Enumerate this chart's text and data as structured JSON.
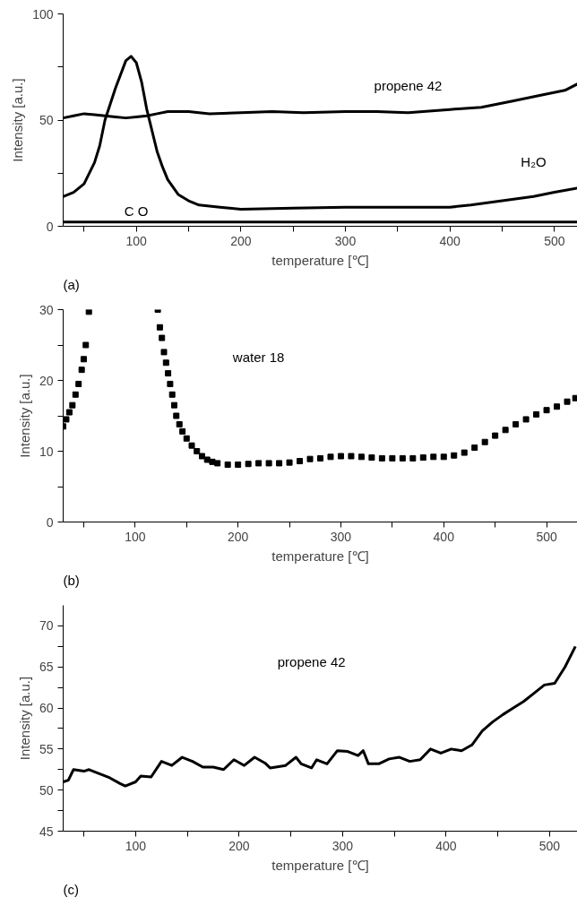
{
  "chart_data": [
    {
      "type": "line",
      "xlabel": "temperature [℃]",
      "ylabel": "Intensity [a.u.]",
      "xlim": [
        30,
        522
      ],
      "ylim": [
        0,
        100
      ],
      "xticks": [
        {
          "value": 50,
          "label": null
        },
        100,
        {
          "value": 150,
          "label": null
        },
        200,
        {
          "value": 250,
          "label": null
        },
        300,
        {
          "value": 350,
          "label": null
        },
        400,
        {
          "value": 450,
          "label": null
        },
        500
      ],
      "yticks": [
        0,
        {
          "value": 25,
          "label": null
        },
        50,
        {
          "value": 75,
          "label": null
        },
        100
      ],
      "grid": false,
      "legend": false,
      "line_style": "solid",
      "series": [
        {
          "name": "propene 42",
          "color": "#000000",
          "x": [
            30,
            40,
            50,
            60,
            70,
            80,
            90,
            100,
            110,
            120,
            130,
            150,
            170,
            200,
            230,
            260,
            300,
            330,
            360,
            400,
            430,
            460,
            490,
            510,
            522
          ],
          "values": [
            51,
            52,
            53,
            52.5,
            52,
            51.5,
            51,
            51.5,
            52,
            53,
            54,
            54,
            53,
            53.5,
            54,
            53.5,
            54,
            54,
            53.5,
            55,
            56,
            59,
            62,
            64,
            67
          ]
        },
        {
          "name": "H₂O",
          "color": "#000000",
          "x": [
            30,
            40,
            50,
            60,
            65,
            70,
            80,
            90,
            95,
            100,
            105,
            110,
            115,
            120,
            125,
            130,
            140,
            150,
            160,
            180,
            200,
            250,
            300,
            350,
            400,
            420,
            450,
            480,
            500,
            522
          ],
          "values": [
            14,
            16,
            20,
            30,
            38,
            50,
            65,
            78,
            80,
            77,
            68,
            55,
            45,
            35,
            28,
            22,
            15,
            12,
            10,
            9,
            8,
            8.5,
            9,
            9,
            9,
            10,
            12,
            14,
            16,
            18
          ]
        },
        {
          "name": "C O",
          "color": "#000000",
          "x": [
            30,
            100,
            200,
            300,
            400,
            522
          ],
          "values": [
            2,
            2,
            2,
            2,
            2,
            2
          ]
        }
      ],
      "annotations": [
        "(a)"
      ]
    },
    {
      "type": "scatter",
      "marker": "square",
      "xlabel": "temperature [℃]",
      "ylabel": "Intensity [a.u.]",
      "xlim": [
        30,
        530
      ],
      "ylim": [
        0,
        30
      ],
      "xticks": [
        {
          "value": 50,
          "label": null
        },
        100,
        {
          "value": 150,
          "label": null
        },
        200,
        {
          "value": 250,
          "label": null
        },
        300,
        {
          "value": 350,
          "label": null
        },
        400,
        {
          "value": 450,
          "label": null
        },
        500
      ],
      "yticks": [
        0,
        {
          "value": 5,
          "label": null
        },
        10,
        {
          "value": 15,
          "label": null
        },
        20,
        {
          "value": 25,
          "label": null
        },
        30
      ],
      "grid": false,
      "legend": false,
      "series": [
        {
          "name": "water 18",
          "color": "#000000",
          "x": [
            30,
            33,
            36,
            39,
            42,
            45,
            48,
            50,
            52,
            55,
            122,
            124,
            126,
            128,
            130,
            132,
            134,
            136,
            138,
            140,
            143,
            146,
            150,
            155,
            160,
            165,
            170,
            175,
            180,
            190,
            200,
            210,
            220,
            230,
            240,
            250,
            260,
            270,
            280,
            290,
            300,
            310,
            320,
            330,
            340,
            350,
            360,
            370,
            380,
            390,
            400,
            410,
            420,
            430,
            440,
            450,
            460,
            470,
            480,
            490,
            500,
            510,
            520,
            528
          ],
          "values": [
            13.5,
            14.5,
            15.5,
            16.5,
            18,
            19.5,
            21.5,
            23,
            25,
            29.7,
            30,
            27.5,
            26,
            24,
            22.5,
            21,
            19.5,
            18,
            16.5,
            15,
            13.8,
            12.8,
            11.8,
            10.8,
            10,
            9.3,
            8.8,
            8.5,
            8.3,
            8.1,
            8.1,
            8.2,
            8.3,
            8.3,
            8.3,
            8.4,
            8.6,
            8.9,
            9,
            9.2,
            9.3,
            9.3,
            9.2,
            9.1,
            9,
            9,
            9,
            9,
            9.1,
            9.2,
            9.2,
            9.4,
            9.8,
            10.5,
            11.3,
            12.2,
            13,
            13.8,
            14.5,
            15.2,
            15.8,
            16.3,
            17,
            17.5
          ]
        }
      ],
      "annotations": [
        "(b)"
      ]
    },
    {
      "type": "line",
      "xlabel": "temperature [℃]",
      "ylabel": "Intensity [a.u.]",
      "xlim": [
        30,
        527
      ],
      "ylim": [
        45,
        72.5
      ],
      "xticks": [
        {
          "value": 50,
          "label": null
        },
        100,
        {
          "value": 150,
          "label": null
        },
        200,
        {
          "value": 250,
          "label": null
        },
        300,
        {
          "value": 350,
          "label": null
        },
        400,
        {
          "value": 450,
          "label": null
        },
        500
      ],
      "yticks": [
        45,
        {
          "value": 47.5,
          "label": null
        },
        50,
        {
          "value": 52.5,
          "label": null
        },
        55,
        {
          "value": 57.5,
          "label": null
        },
        60,
        {
          "value": 62.5,
          "label": null
        },
        65,
        {
          "value": 67.5,
          "label": null
        },
        70
      ],
      "grid": false,
      "legend": false,
      "line_style": "solid",
      "series": [
        {
          "name": "propene 42",
          "color": "#000000",
          "x": [
            30,
            35,
            40,
            50,
            55,
            65,
            75,
            85,
            90,
            100,
            105,
            115,
            125,
            135,
            145,
            155,
            165,
            175,
            185,
            195,
            205,
            215,
            225,
            230,
            245,
            255,
            260,
            270,
            275,
            285,
            295,
            305,
            315,
            320,
            325,
            335,
            345,
            355,
            365,
            375,
            385,
            395,
            405,
            415,
            425,
            435,
            445,
            455,
            465,
            475,
            485,
            495,
            505,
            515,
            525
          ],
          "values": [
            51,
            51.2,
            52.5,
            52.3,
            52.5,
            52,
            51.5,
            50.8,
            50.5,
            51,
            51.7,
            51.6,
            53.5,
            53,
            54,
            53.5,
            52.8,
            52.8,
            52.5,
            53.7,
            53,
            54,
            53.3,
            52.7,
            53,
            54,
            53.2,
            52.7,
            53.7,
            53.2,
            54.8,
            54.7,
            54.2,
            54.8,
            53.2,
            53.2,
            53.8,
            54,
            53.5,
            53.7,
            55,
            54.5,
            55,
            54.8,
            55.5,
            57.2,
            58.3,
            59.2,
            60,
            60.8,
            61.8,
            62.8,
            63,
            65,
            67.5
          ]
        }
      ],
      "annotations": [
        "(c)"
      ]
    }
  ]
}
